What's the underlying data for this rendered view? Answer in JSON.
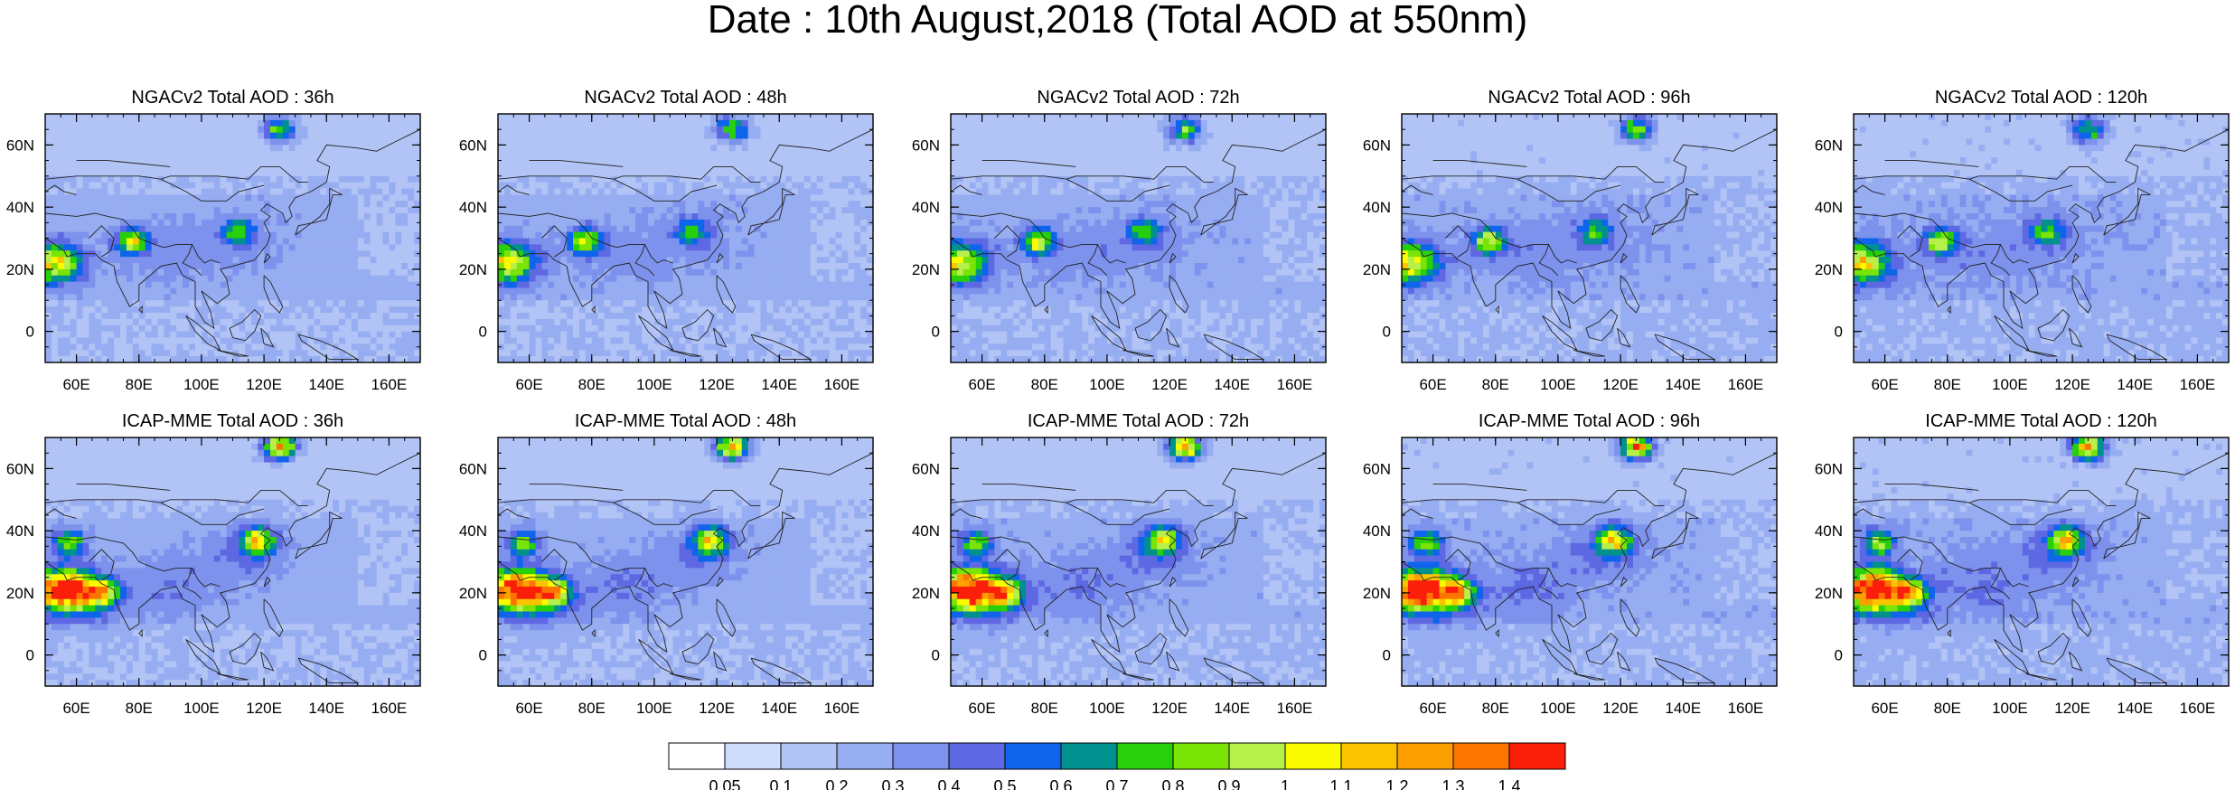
{
  "page": {
    "title": "Date : 10th August,2018 (Total AOD at 550nm)"
  },
  "rows": [
    {
      "model": "NGACv2",
      "panels": [
        {
          "title": "NGACv2 Total AOD : 36h",
          "lead_hours": 36
        },
        {
          "title": "NGACv2 Total AOD : 48h",
          "lead_hours": 48
        },
        {
          "title": "NGACv2 Total AOD : 72h",
          "lead_hours": 72
        },
        {
          "title": "NGACv2 Total AOD : 96h",
          "lead_hours": 96
        },
        {
          "title": "NGACv2 Total AOD : 120h",
          "lead_hours": 120
        }
      ]
    },
    {
      "model": "ICAP-MME",
      "panels": [
        {
          "title": "ICAP-MME Total AOD : 36h",
          "lead_hours": 36
        },
        {
          "title": "ICAP-MME Total AOD : 48h",
          "lead_hours": 48
        },
        {
          "title": "ICAP-MME Total AOD : 72h",
          "lead_hours": 72
        },
        {
          "title": "ICAP-MME Total AOD : 96h",
          "lead_hours": 96
        },
        {
          "title": "ICAP-MME Total AOD : 120h",
          "lead_hours": 120
        }
      ]
    }
  ],
  "axes": {
    "lon_ticks": [
      "60E",
      "80E",
      "100E",
      "120E",
      "140E",
      "160E"
    ],
    "lon_values": [
      60,
      80,
      100,
      120,
      140,
      160
    ],
    "lat_ticks": [
      "60N",
      "40N",
      "20N",
      "0"
    ],
    "lat_values": [
      60,
      40,
      20,
      0
    ],
    "lon_range": [
      50,
      170
    ],
    "lat_range": [
      -10,
      70
    ]
  },
  "colorbar": {
    "labels": [
      "0.05",
      "0.1",
      "0.2",
      "0.3",
      "0.4",
      "0.5",
      "0.6",
      "0.7",
      "0.8",
      "0.9",
      "1",
      "1.1",
      "1.2",
      "1.3",
      "1.4"
    ],
    "colors": [
      "#ffffff",
      "#d0dcfb",
      "#b2c4f5",
      "#97adf2",
      "#7d92ec",
      "#5e68e2",
      "#0f64ec",
      "#00918e",
      "#28d00c",
      "#7ae406",
      "#b7f04b",
      "#fbfb00",
      "#fbc300",
      "#fba000",
      "#fb7500",
      "#fb1e0b"
    ]
  },
  "map_labels": {
    "land_outline": "coastline-and-borders"
  },
  "hotspots": {
    "aod_scale": "0-1.5",
    "ngac": [
      {
        "lon": 125,
        "lat": 65,
        "aod": 0.75
      },
      {
        "lon": 52,
        "lat": 22,
        "aod": 0.75
      },
      {
        "lon": 78,
        "lat": 29,
        "aod": 0.8
      },
      {
        "lon": 112,
        "lat": 32,
        "aod": 0.55
      }
    ],
    "icap": [
      {
        "lon": 125,
        "lat": 67,
        "aod": 1.2
      },
      {
        "lon": 56,
        "lat": 21,
        "aod": 1.4
      },
      {
        "lon": 68,
        "lat": 20,
        "aod": 0.85
      },
      {
        "lon": 118,
        "lat": 37,
        "aod": 0.85
      },
      {
        "lon": 58,
        "lat": 36,
        "aod": 0.7
      }
    ]
  }
}
